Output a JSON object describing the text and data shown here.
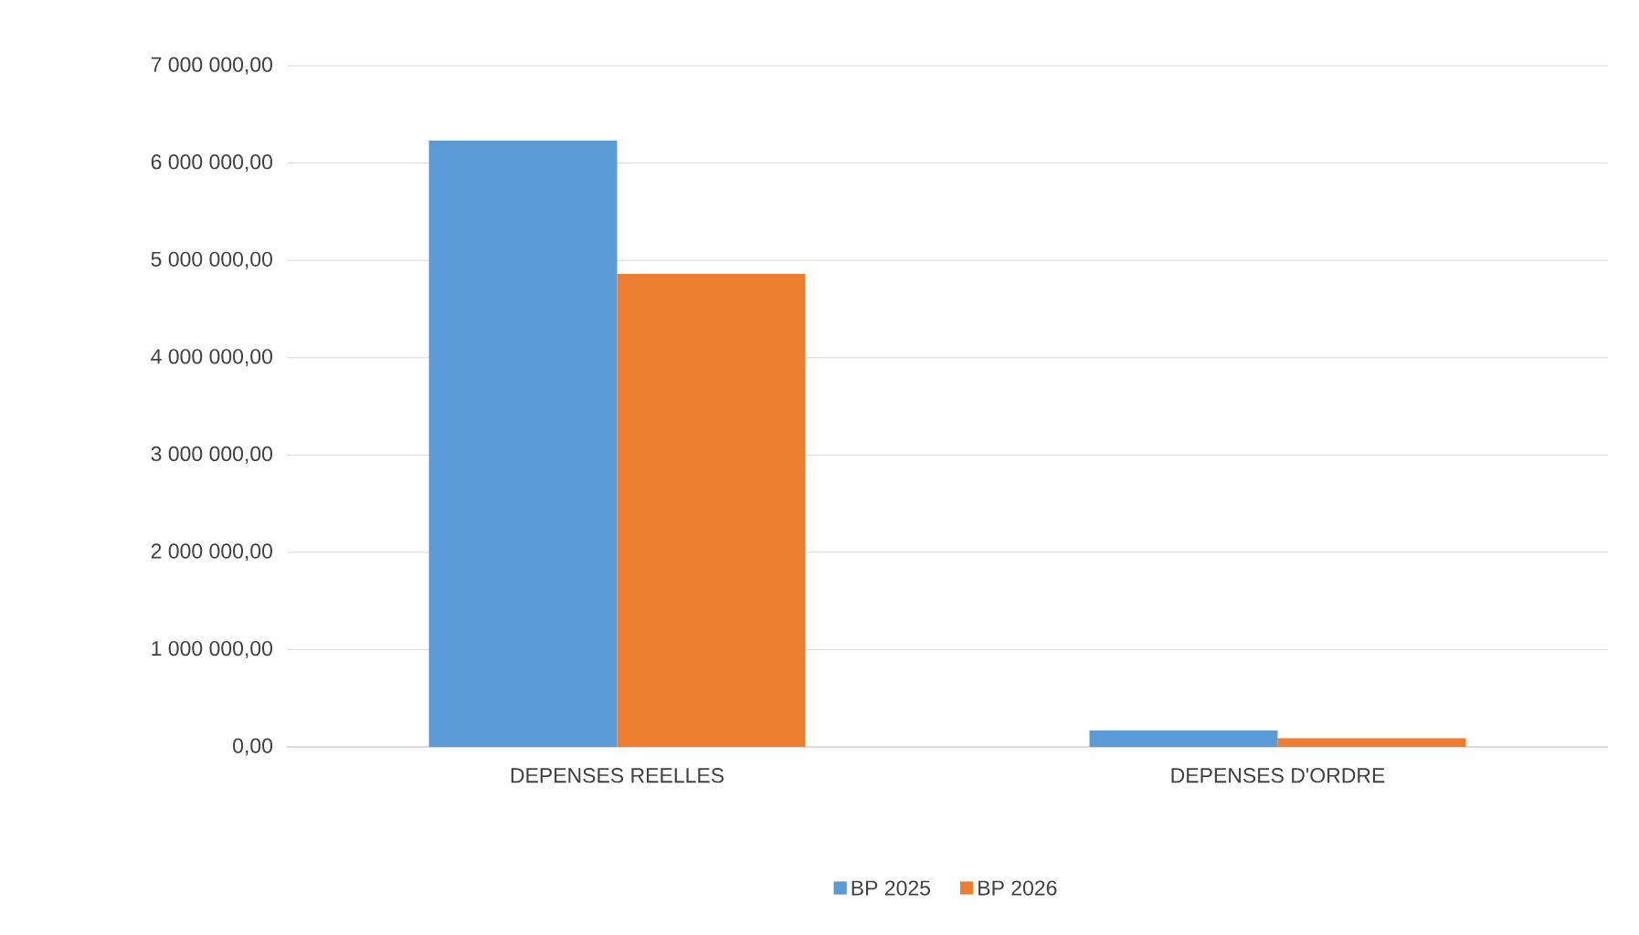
{
  "chart_data": {
    "type": "bar",
    "categories": [
      "DEPENSES REELLES",
      "DEPENSES D'ORDRE"
    ],
    "series": [
      {
        "name": "BP 2025",
        "color": "#5b9bd5",
        "values": [
          6230000,
          170000
        ]
      },
      {
        "name": "BP 2026",
        "color": "#ed7d31",
        "values": [
          4860000,
          90000
        ]
      }
    ],
    "ylim": [
      0,
      7000000
    ],
    "yticks": [
      {
        "value": 0,
        "label": "0,00"
      },
      {
        "value": 1000000,
        "label": "1 000 000,00"
      },
      {
        "value": 2000000,
        "label": "2 000 000,00"
      },
      {
        "value": 3000000,
        "label": "3 000 000,00"
      },
      {
        "value": 4000000,
        "label": "4 000 000,00"
      },
      {
        "value": 5000000,
        "label": "5 000 000,00"
      },
      {
        "value": 6000000,
        "label": "6 000 000,00"
      },
      {
        "value": 7000000,
        "label": "7 000 000,00"
      }
    ],
    "grid": "y",
    "legend": "bottom"
  }
}
